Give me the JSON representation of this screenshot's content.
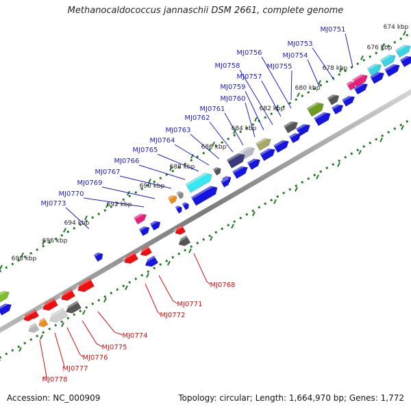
{
  "title": "Methanocaldococcus jannaschii DSM 2661, complete genome",
  "footer": {
    "accession": "Accession: NC_000909",
    "summary": "Topology: circular; Length: 1,664,970 bp; Genes: 1,772"
  },
  "colors": {
    "forward_label": "#1a1acc",
    "reverse_label": "#d01010",
    "tick": "#1e7a1e",
    "backbone": "#8c8c8c"
  },
  "kbp_ticks": [
    "674 kbp",
    "676 kbp",
    "678 kbp",
    "680 kbp",
    "682 kbp",
    "684 kbp",
    "686 kbp",
    "688 kbp",
    "690 kbp",
    "692 kbp",
    "694 kbp",
    "696 kbp",
    "698 kbp"
  ],
  "forward_labels": [
    "MJ0751",
    "MJ0753",
    "MJ0754",
    "MJ0755",
    "MJ0756",
    "MJ0757",
    "MJ0758",
    "MJ0759",
    "MJ0760",
    "MJ0761",
    "MJ0762",
    "MJ0763",
    "MJ0764",
    "MJ0765",
    "MJ0766",
    "MJ0767",
    "MJ0769",
    "MJ0770",
    "MJ0773"
  ],
  "reverse_labels": [
    "MJ0768",
    "MJ0771",
    "MJ0772",
    "MJ0774",
    "MJ0775",
    "MJ0776",
    "MJ0777",
    "MJ0778"
  ]
}
